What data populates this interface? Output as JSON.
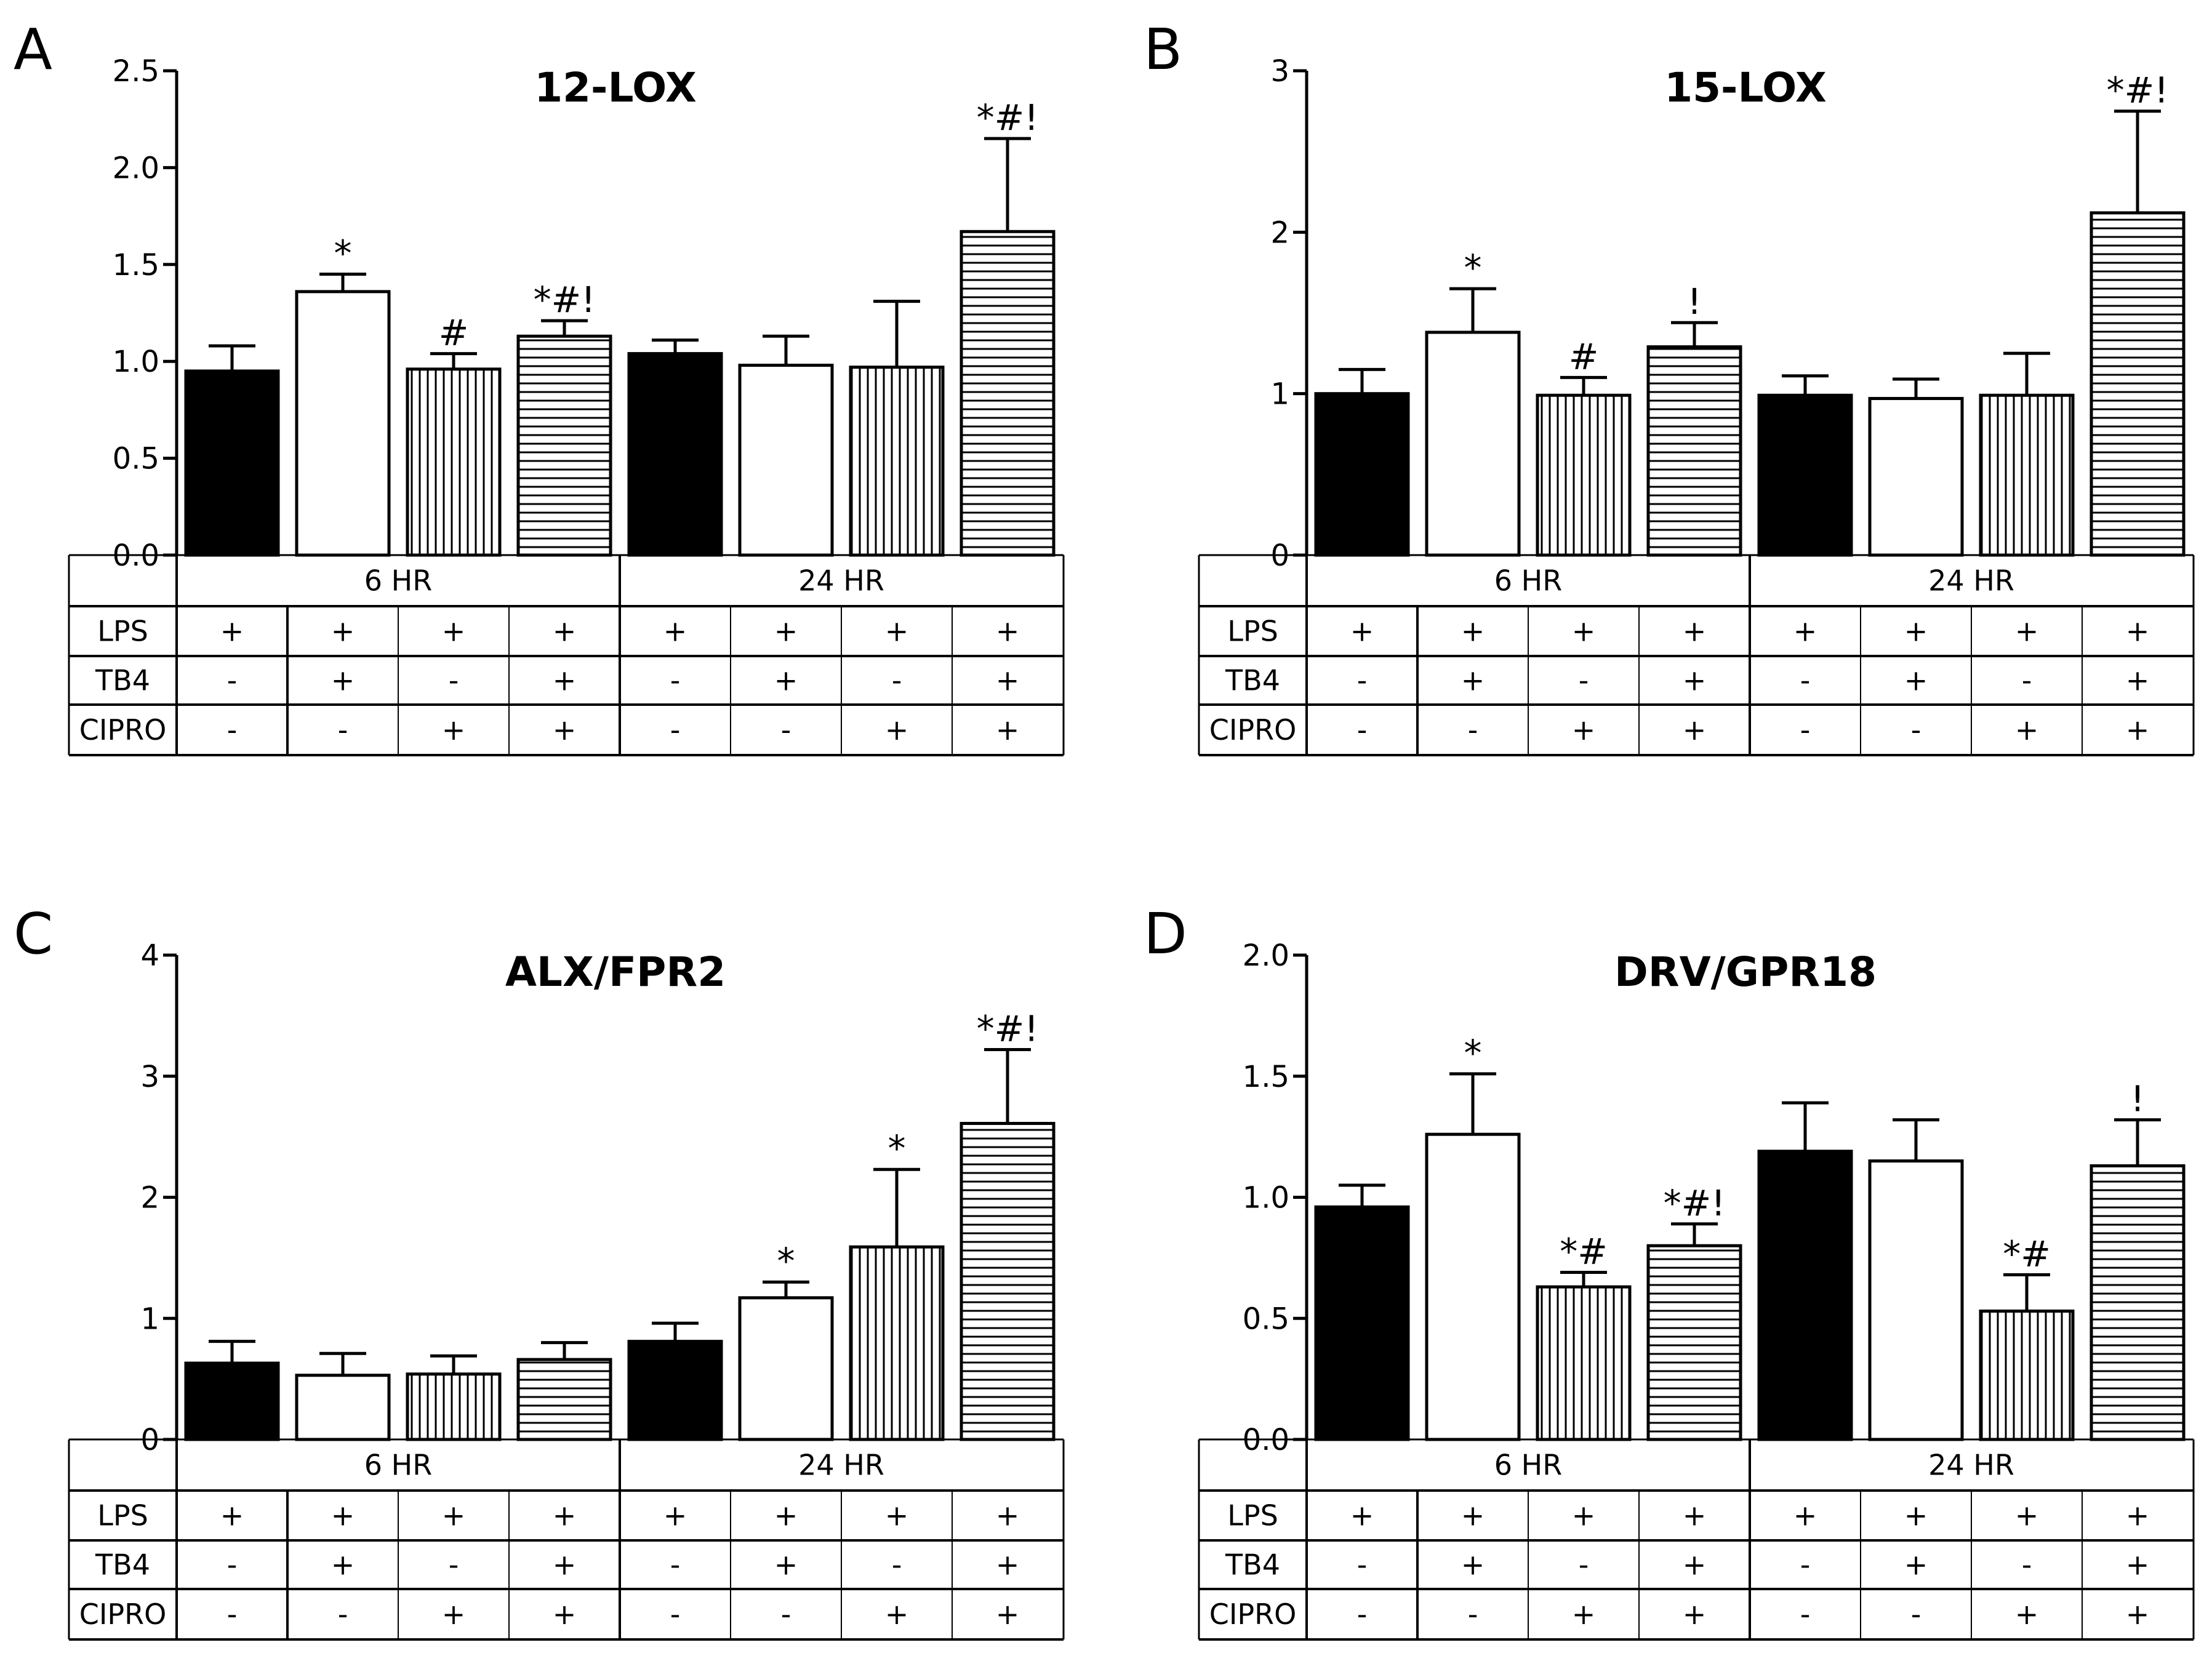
{
  "figure": {
    "conditions": {
      "row_labels": [
        "LPS",
        "TB4",
        "CIPRO"
      ],
      "lps": [
        "+",
        "+",
        "+",
        "+",
        "+",
        "+",
        "+",
        "+"
      ],
      "tb4": [
        "-",
        "+",
        "-",
        "+",
        "-",
        "+",
        "-",
        "+"
      ],
      "cipro": [
        "-",
        "-",
        "+",
        "+",
        "-",
        "-",
        "+",
        "+"
      ],
      "groups": [
        "6 HR",
        "24 HR"
      ]
    },
    "bar_fill": [
      "solid-black",
      "white",
      "vertical-lines",
      "horizontal-lines",
      "solid-black",
      "white",
      "vertical-lines",
      "horizontal-lines"
    ],
    "colors": {
      "bar": "#000000",
      "background": "#ffffff"
    }
  },
  "chart_data": [
    {
      "type": "bar",
      "panel": "A",
      "title": "12-LOX",
      "ylim": [
        0,
        2.5
      ],
      "yticks": [
        "0.0",
        "0.5",
        "1.0",
        "1.5",
        "2.0",
        "2.5"
      ],
      "ytick_values": [
        0,
        0.5,
        1.0,
        1.5,
        2.0,
        2.5
      ],
      "values": [
        0.95,
        1.36,
        0.96,
        1.13,
        1.04,
        0.98,
        0.97,
        1.67
      ],
      "errors": [
        0.13,
        0.09,
        0.08,
        0.08,
        0.07,
        0.15,
        0.34,
        0.48
      ],
      "annotations": [
        "",
        "*",
        "#",
        "*#!",
        "",
        "",
        "",
        "*#!"
      ]
    },
    {
      "type": "bar",
      "panel": "B",
      "title": "15-LOX",
      "ylim": [
        0,
        3
      ],
      "yticks": [
        "0",
        "1",
        "2",
        "3"
      ],
      "ytick_values": [
        0,
        1,
        2,
        3
      ],
      "values": [
        1.0,
        1.38,
        0.99,
        1.29,
        0.99,
        0.97,
        0.99,
        2.12
      ],
      "errors": [
        0.15,
        0.27,
        0.11,
        0.15,
        0.12,
        0.12,
        0.26,
        0.63
      ],
      "annotations": [
        "",
        "*",
        "#",
        "!",
        "",
        "",
        "",
        "*#!"
      ]
    },
    {
      "type": "bar",
      "panel": "C",
      "title": "ALX/FPR2",
      "ylim": [
        0,
        4
      ],
      "yticks": [
        "0",
        "1",
        "2",
        "3",
        "4"
      ],
      "ytick_values": [
        0,
        1,
        2,
        3,
        4
      ],
      "values": [
        0.63,
        0.53,
        0.54,
        0.66,
        0.81,
        1.17,
        1.59,
        2.61
      ],
      "errors": [
        0.18,
        0.18,
        0.15,
        0.14,
        0.15,
        0.13,
        0.64,
        0.61
      ],
      "annotations": [
        "",
        "",
        "",
        "",
        "",
        "*",
        "*",
        "*#!"
      ]
    },
    {
      "type": "bar",
      "panel": "D",
      "title": "DRV/GPR18",
      "ylim": [
        0,
        2.0
      ],
      "yticks": [
        "0.0",
        "0.5",
        "1.0",
        "1.5",
        "2.0"
      ],
      "ytick_values": [
        0,
        0.5,
        1.0,
        1.5,
        2.0
      ],
      "values": [
        0.96,
        1.26,
        0.63,
        0.8,
        1.19,
        1.15,
        0.53,
        1.13
      ],
      "errors": [
        0.09,
        0.25,
        0.06,
        0.09,
        0.2,
        0.17,
        0.15,
        0.19
      ],
      "annotations": [
        "",
        "*",
        "*#",
        "*#!",
        "",
        "",
        "*#",
        "!"
      ]
    }
  ]
}
